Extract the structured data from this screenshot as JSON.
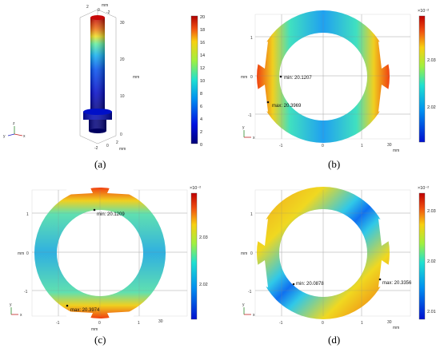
{
  "colors": {
    "low": "#0a14a8",
    "mid": "#28d2c8",
    "high": "#e81810"
  },
  "panels": {
    "a": {
      "label": "(a)",
      "axis_unit": "mm",
      "z_ticks": [
        "0",
        "10",
        "20",
        "30"
      ],
      "top_ticks": [
        "2",
        "0",
        "-2"
      ],
      "bottom_ticks": [
        "-2",
        "0",
        "2"
      ],
      "triad": {
        "x": "x",
        "y": "y",
        "z": "z"
      },
      "colorbar": {
        "ticks": [
          "20",
          "18",
          "16",
          "14",
          "12",
          "10",
          "8",
          "6",
          "4",
          "2",
          "0"
        ]
      }
    },
    "b": {
      "label": "(b)",
      "axis_unit": "mm",
      "right_label": "30",
      "y_ticks": [
        "1",
        "0",
        "-1"
      ],
      "x_ticks": [
        "-1",
        "0",
        "1"
      ],
      "min_label": "min: 20.1207",
      "max_label": "max: 20.3969",
      "triad": {
        "x": "x",
        "y": "y"
      },
      "colorbar": {
        "exponent": "×10⁻²",
        "ticks": [
          "2.03",
          "2.02"
        ]
      }
    },
    "c": {
      "label": "(c)",
      "axis_unit": "mm",
      "right_label": "30",
      "y_ticks": [
        "1",
        "0",
        "-1"
      ],
      "x_ticks": [
        "-1",
        "0",
        "1"
      ],
      "min_label": "min: 20.1209",
      "max_label": "max: 20.3974",
      "triad": {
        "x": "x",
        "y": "y"
      },
      "colorbar": {
        "exponent": "×10⁻²",
        "ticks": [
          "2.03",
          "2.02"
        ]
      }
    },
    "d": {
      "label": "(d)",
      "axis_unit": "mm",
      "right_label": "30",
      "y_ticks": [
        "1",
        "0",
        "-1"
      ],
      "x_ticks": [
        "-1",
        "0",
        "1"
      ],
      "min_label": "min: 20.0878",
      "max_label": "max: 20.3356",
      "triad": {
        "x": "x",
        "y": "y"
      },
      "colorbar": {
        "exponent": "×10⁻²",
        "ticks": [
          "2.03",
          "2.02",
          "2.01"
        ]
      }
    }
  }
}
